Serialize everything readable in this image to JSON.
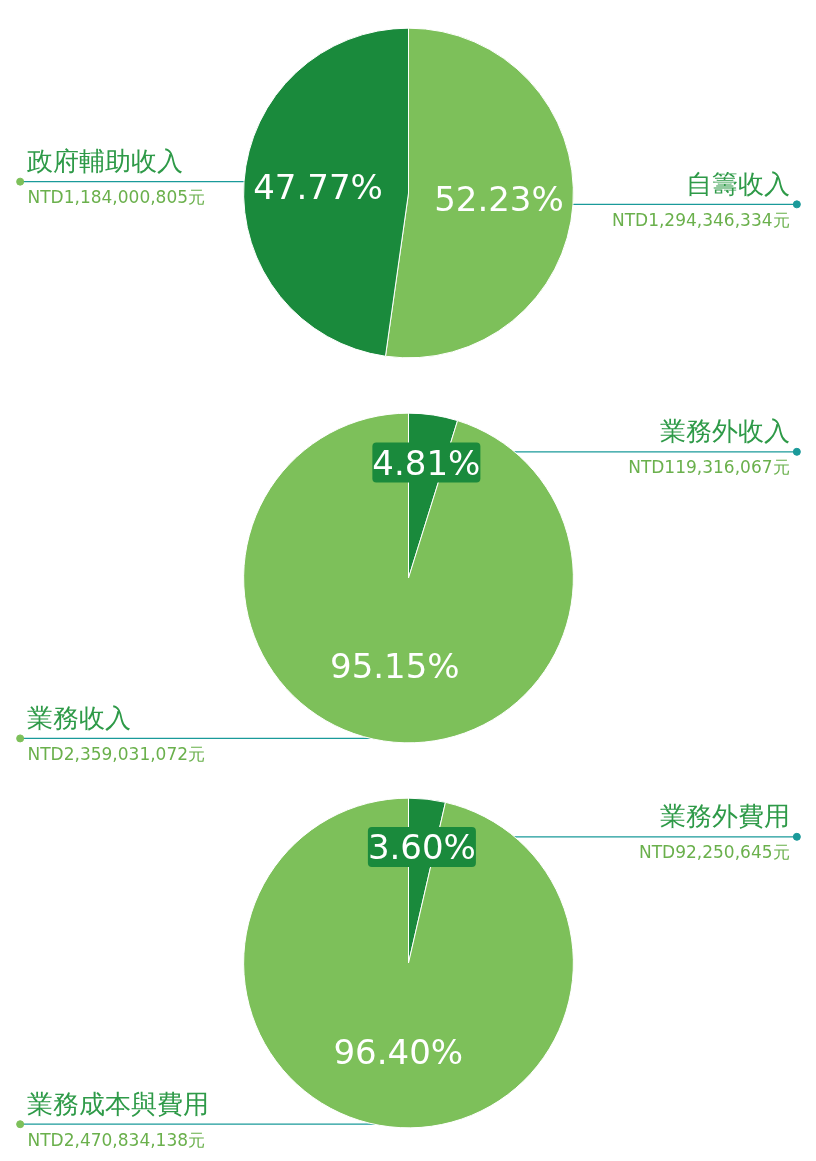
{
  "chart_data": [
    {
      "type": "pie",
      "categories": [
        "自籌收入",
        "政府輔助收入"
      ],
      "values": [
        52.23,
        47.77
      ],
      "colors": [
        "#7dc05a",
        "#1a8a3c"
      ],
      "data_labels": true,
      "value_labels": [
        "52.23%",
        "47.77%"
      ],
      "annotations": [
        "NTD1,294,346,334元",
        "NTD1,184,000,805元"
      ]
    },
    {
      "type": "pie",
      "categories": [
        "業務外收入",
        "業務收入"
      ],
      "values": [
        4.81,
        95.15
      ],
      "colors": [
        "#1a8a3c",
        "#7dc05a"
      ],
      "data_labels": true,
      "value_labels": [
        "4.81%",
        "95.15%"
      ],
      "annotations": [
        "NTD119,316,067元",
        "NTD2,359,031,072元"
      ]
    },
    {
      "type": "pie",
      "categories": [
        "業務外費用",
        "業務成本與費用"
      ],
      "values": [
        3.6,
        96.4
      ],
      "colors": [
        "#1a8a3c",
        "#7dc05a"
      ],
      "data_labels": true,
      "value_labels": [
        "3.60%",
        "96.40%"
      ],
      "annotations": [
        "NTD92,250,645元",
        "NTD2,470,834,138元"
      ]
    }
  ]
}
